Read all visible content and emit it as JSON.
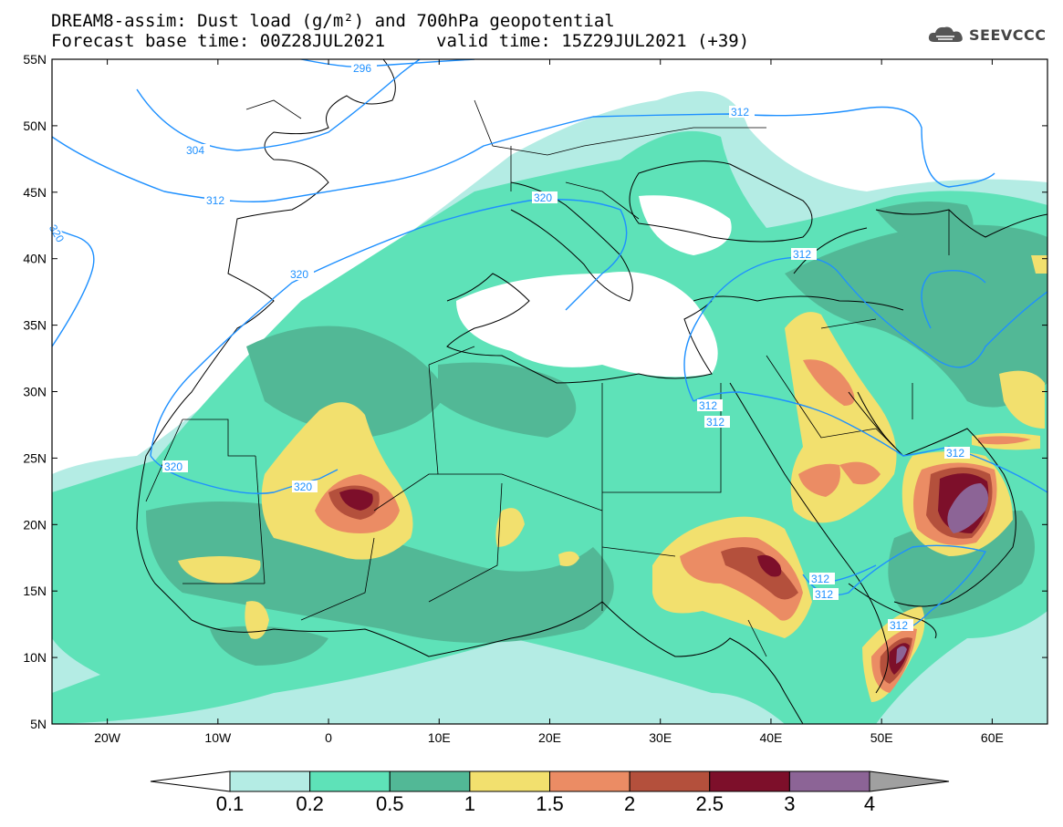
{
  "header": {
    "title_line1": "DREAM8-assim: Dust load (g/m²) and 700hPa geopotential",
    "title_line2": "Forecast base time: 00Z28JUL2021",
    "valid_time": "valid time: 15Z29JUL2021 (+39)"
  },
  "logo": {
    "text": "SEEVCCC",
    "icon": "cloud-icon"
  },
  "map": {
    "projection": "lat-lon",
    "lon_range": [
      -25,
      65
    ],
    "lat_range": [
      5,
      55
    ],
    "lat_labels": [
      "55N",
      "50N",
      "45N",
      "40N",
      "35N",
      "30N",
      "25N",
      "20N",
      "15N",
      "10N",
      "5N"
    ],
    "lon_labels": [
      "20W",
      "10W",
      "0",
      "10E",
      "20E",
      "30E",
      "40E",
      "50E",
      "60E"
    ],
    "contour_labels": [
      "296",
      "304",
      "312",
      "320",
      "320",
      "312",
      "320",
      "320",
      "312",
      "312",
      "312",
      "312",
      "312",
      "312",
      "312",
      "312"
    ],
    "contour_color": "#1e90ff"
  },
  "colorbar": {
    "labels": [
      "0.1",
      "0.2",
      "0.5",
      "1",
      "1.5",
      "2",
      "2.5",
      "3",
      "4"
    ],
    "colors": [
      "#ffffff",
      "#b4ece4",
      "#5ee2b8",
      "#52b896",
      "#f2e06e",
      "#eb8c64",
      "#b4503c",
      "#7d0f2a",
      "#8c6496",
      "#a0a0a0"
    ]
  }
}
